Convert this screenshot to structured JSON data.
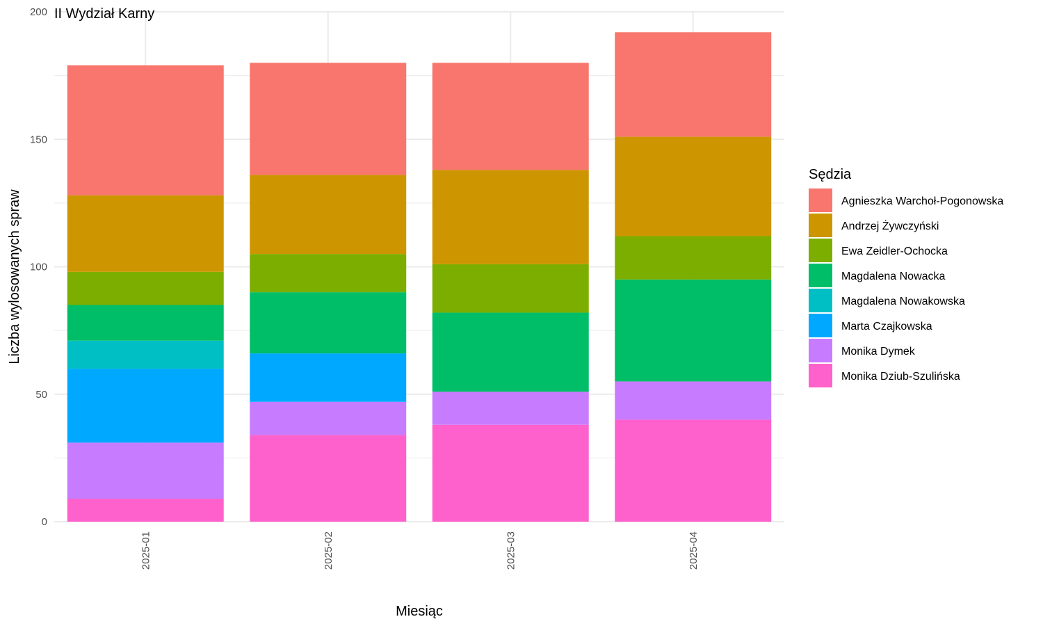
{
  "chart_data": {
    "type": "bar",
    "stacked": true,
    "title": "II Wydział Karny",
    "xlabel": "Miesiąc",
    "ylabel": "Liczba wylosowanych spraw",
    "ylim": [
      0,
      200
    ],
    "yticks": [
      0,
      50,
      100,
      150,
      200
    ],
    "grid": true,
    "legend_title": "Sędzia",
    "legend_position": "right",
    "categories": [
      "2025-01",
      "2025-02",
      "2025-03",
      "2025-04"
    ],
    "series": [
      {
        "name": "Agnieszka Warchoł-Pogonowska",
        "color": "#F8766D",
        "values": [
          51,
          44,
          42,
          41
        ]
      },
      {
        "name": "Andrzej Żywczyński",
        "color": "#CD9600",
        "values": [
          30,
          31,
          37,
          39
        ]
      },
      {
        "name": "Ewa Zeidler-Ochocka",
        "color": "#7CAE00",
        "values": [
          13,
          15,
          19,
          17
        ]
      },
      {
        "name": "Magdalena Nowacka",
        "color": "#00BE67",
        "values": [
          14,
          24,
          31,
          40
        ]
      },
      {
        "name": "Magdalena Nowakowska",
        "color": "#00BFC4",
        "values": [
          11,
          0,
          0,
          0
        ]
      },
      {
        "name": "Marta Czajkowska",
        "color": "#00A9FF",
        "values": [
          29,
          19,
          0,
          0
        ]
      },
      {
        "name": "Monika Dymek",
        "color": "#C77CFF",
        "values": [
          22,
          13,
          13,
          15
        ]
      },
      {
        "name": "Monika Dziub-Szulińska",
        "color": "#FF61CC",
        "values": [
          9,
          34,
          38,
          40
        ]
      }
    ]
  }
}
